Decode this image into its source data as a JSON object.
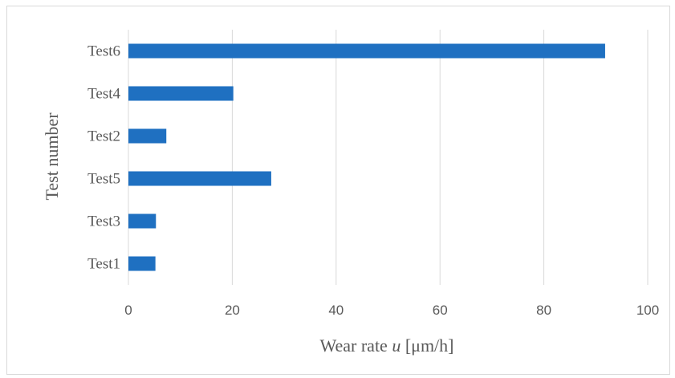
{
  "chart_data": {
    "type": "bar",
    "orientation": "horizontal",
    "categories": [
      "Test1",
      "Test3",
      "Test5",
      "Test2",
      "Test4",
      "Test6"
    ],
    "values": [
      5.2,
      5.3,
      27.5,
      7.3,
      20.2,
      91.8
    ],
    "xlabel_parts": [
      "Wear rate ",
      "u",
      " [μm/h]"
    ],
    "ylabel": "Test number",
    "xlim": [
      0,
      100
    ],
    "xticks": [
      "0",
      "20",
      "40",
      "60",
      "80",
      "100"
    ],
    "grid": "vertical",
    "bar_color": "#1f70c1",
    "grid_color": "#d9d9d9"
  }
}
